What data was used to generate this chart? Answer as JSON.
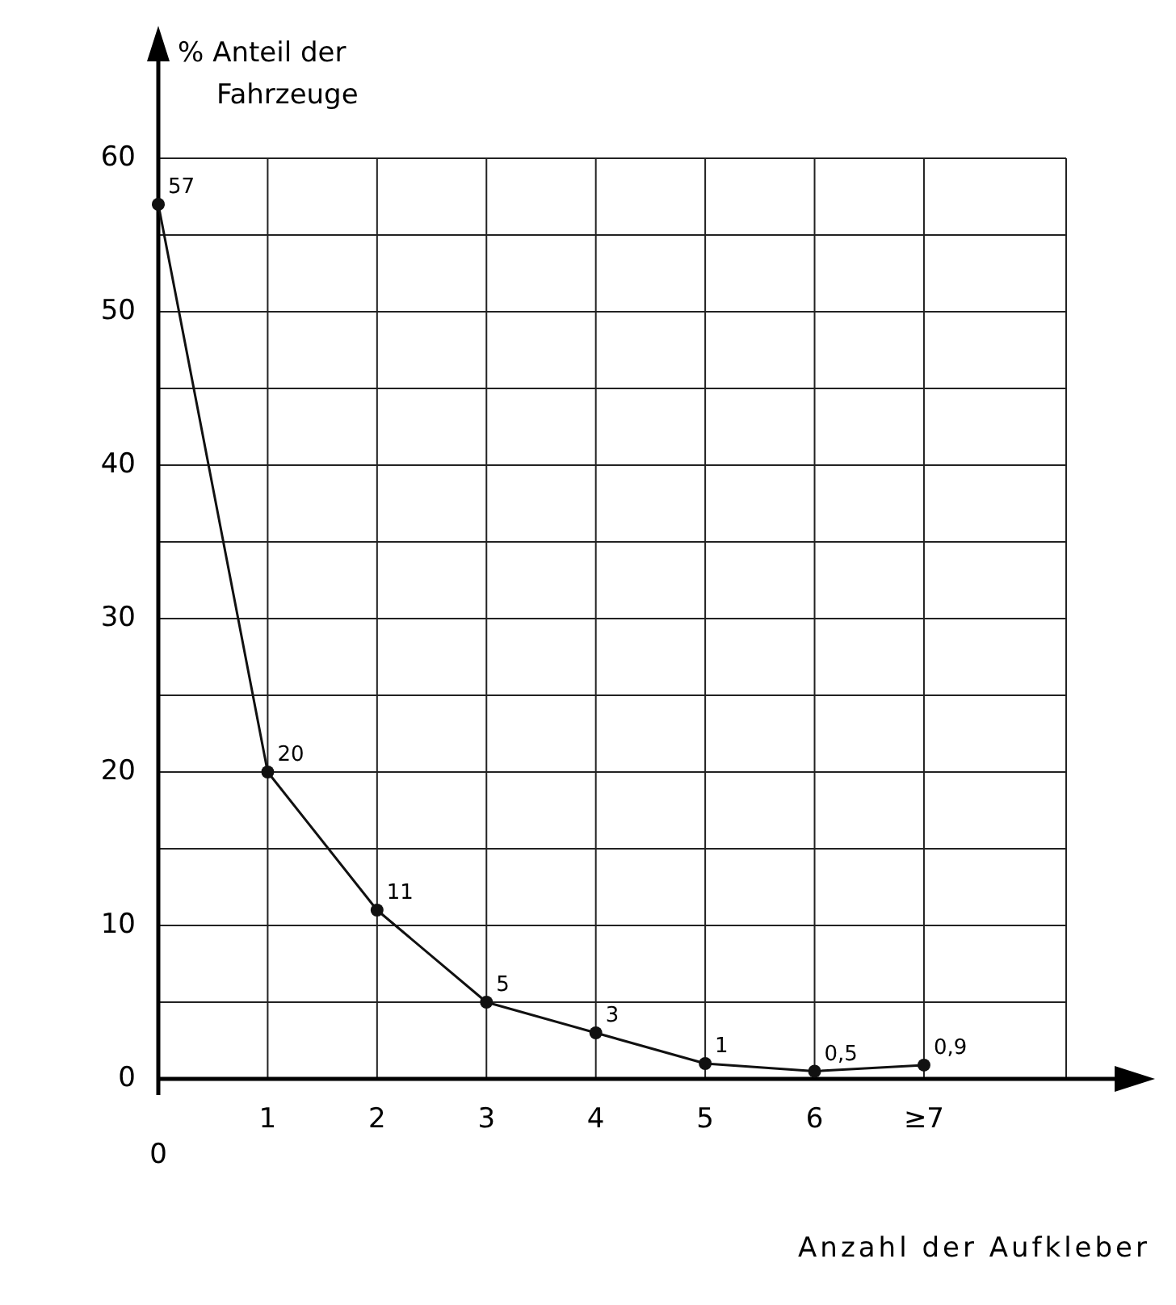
{
  "chart_data": {
    "type": "line",
    "xlabel": "Anzahl der Aufkleber",
    "ylabel": "% Anteil der Fahrzeuge",
    "categories": [
      "0",
      "1",
      "2",
      "3",
      "4",
      "5",
      "6",
      "≥7"
    ],
    "values": [
      57,
      20,
      11,
      5,
      3,
      1,
      0.5,
      0.9
    ],
    "value_labels": [
      "57",
      "20",
      "11",
      "5",
      "3",
      "1",
      "0,5",
      "0,9"
    ],
    "color": "#111111",
    "marker": "circle",
    "line_style": "solid",
    "grid": true,
    "ylim": [
      0,
      60
    ],
    "yticks": [
      0,
      {
        "value": 5,
        "label": null
      },
      10,
      {
        "value": 15,
        "label": null
      },
      20,
      {
        "value": 25,
        "label": null
      },
      30,
      {
        "value": 35,
        "label": null
      },
      40,
      {
        "value": 45,
        "label": null
      },
      50,
      {
        "value": 55,
        "label": null
      },
      60
    ]
  }
}
